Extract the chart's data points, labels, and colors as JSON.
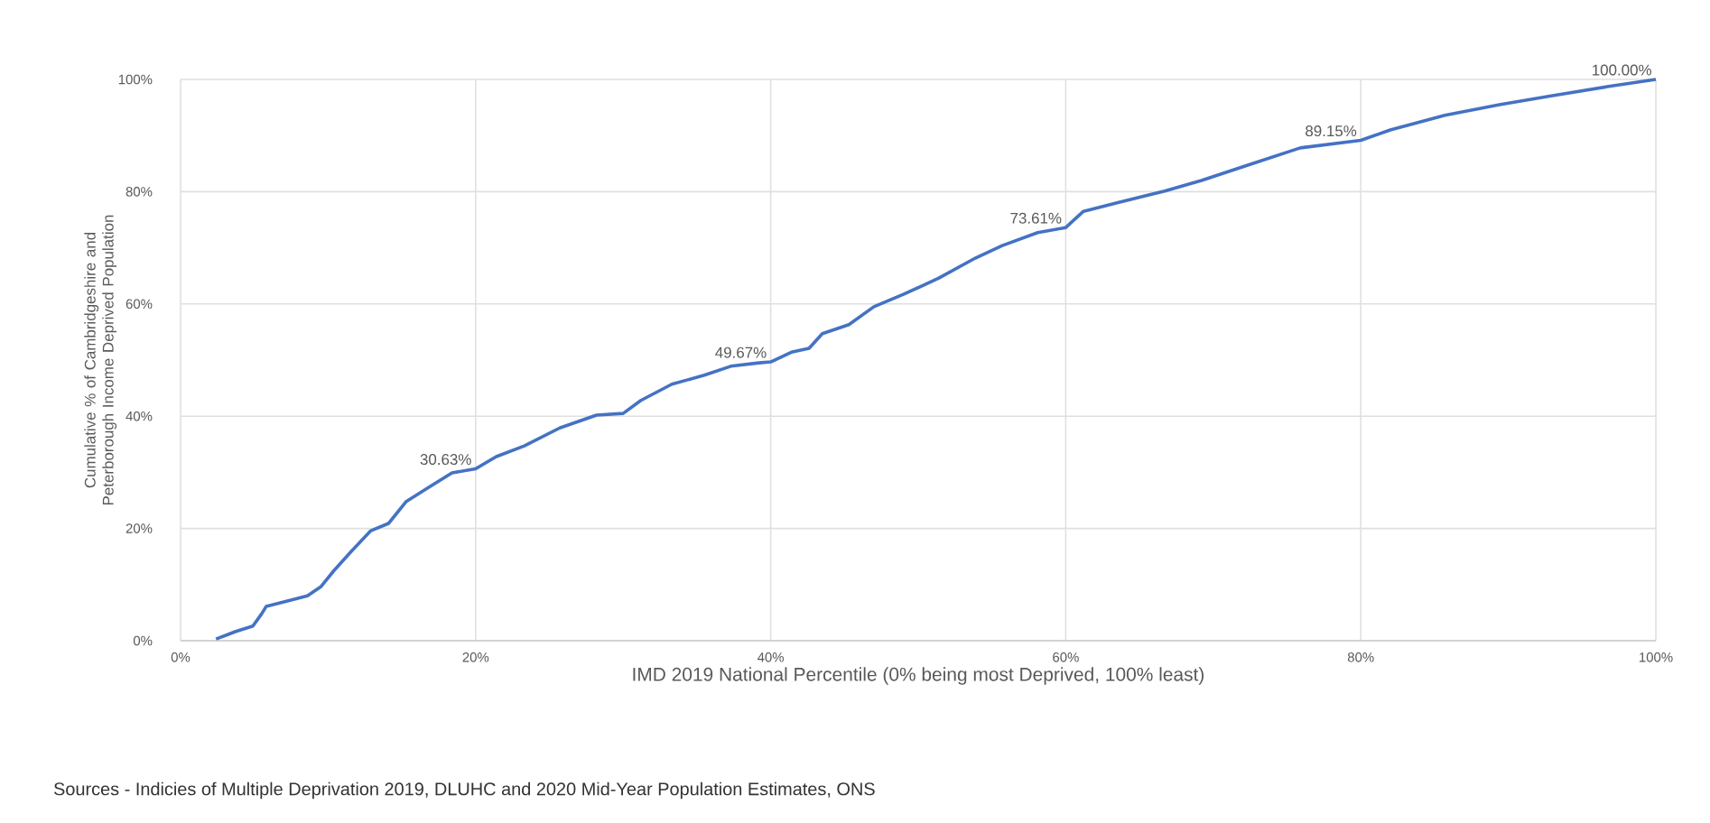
{
  "chart_data": {
    "type": "line",
    "xlabel": "IMD 2019 National Percentile (0% being most Deprived, 100% least)",
    "ylabel": "Cumulative % of Cambridgeshire and Peterborough Income Deprived Population",
    "x": [
      2.4,
      3.7,
      4.9,
      5.5,
      5.8,
      7.3,
      8.6,
      9.5,
      10.4,
      11.6,
      12.9,
      14.1,
      15.3,
      16.8,
      18.4,
      20,
      21.4,
      23.3,
      25.7,
      28.2,
      30,
      31.2,
      33.3,
      35.5,
      37.3,
      39.2,
      40,
      41.4,
      42.6,
      43.5,
      45.3,
      47,
      49,
      51.4,
      53.9,
      55.7,
      58.1,
      60,
      61.2,
      63.6,
      66.7,
      69.2,
      72.2,
      75.9,
      80,
      82,
      85.7,
      89.4,
      93,
      96.7,
      100
    ],
    "series": [
      {
        "color": "#4472c4",
        "values": [
          0.3,
          1.6,
          2.6,
          4.8,
          6.1,
          7.1,
          8.0,
          9.6,
          12.5,
          16,
          19.6,
          20.9,
          24.8,
          27.3,
          29.9,
          30.63,
          32.8,
          34.7,
          37.9,
          40.2,
          40.5,
          42.8,
          45.7,
          47.3,
          48.9,
          49.5,
          49.67,
          51.4,
          52.1,
          54.7,
          56.3,
          59.5,
          61.7,
          64.6,
          68.2,
          70.4,
          72.7,
          73.61,
          76.5,
          78.1,
          80.1,
          82,
          84.6,
          87.8,
          89.15,
          91,
          93.6,
          95.5,
          97.1,
          98.7,
          100
        ]
      }
    ],
    "xlim": [
      0,
      100
    ],
    "ylim": [
      0,
      100
    ],
    "xticks": [
      {
        "value": 0,
        "label": "0%"
      },
      {
        "value": 20,
        "label": "20%"
      },
      {
        "value": 40,
        "label": "40%"
      },
      {
        "value": 60,
        "label": "60%"
      },
      {
        "value": 80,
        "label": "80%"
      },
      {
        "value": 100,
        "label": "100%"
      }
    ],
    "yticks": [
      {
        "value": 0,
        "label": "0%"
      },
      {
        "value": 20,
        "label": "20%"
      },
      {
        "value": 40,
        "label": "40%"
      },
      {
        "value": 60,
        "label": "60%"
      },
      {
        "value": 80,
        "label": "80%"
      },
      {
        "value": 100,
        "label": "100%"
      }
    ],
    "grid": true,
    "marker": "none",
    "line_style": "solid",
    "annotations": [
      {
        "text": "30.63%",
        "x": 20,
        "y": 30.63
      },
      {
        "text": "49.67%",
        "x": 40,
        "y": 49.67
      },
      {
        "text": "73.61%",
        "x": 60,
        "y": 73.61
      },
      {
        "text": "89.15%",
        "x": 80,
        "y": 89.15
      },
      {
        "text": "100.00%",
        "x": 100,
        "y": 100
      },
      "Sources - Indicies of Multiple Deprivation 2019, DLUHC and 2020 Mid-Year Population Estimates, ONS"
    ]
  }
}
